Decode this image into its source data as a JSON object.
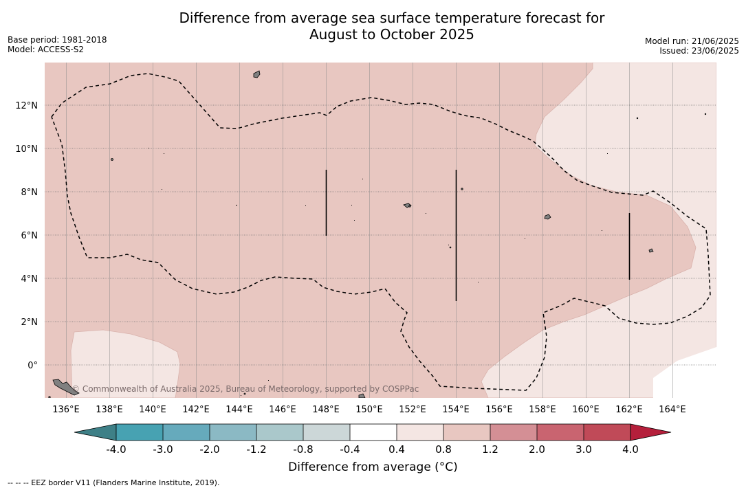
{
  "title": {
    "line1": "Difference from average sea surface temperature forecast for",
    "line2": "August to October 2025"
  },
  "meta_left": {
    "base_period": "Base period: 1981-2018",
    "model": "Model: ACCESS-S2"
  },
  "meta_right": {
    "model_run": "Model run: 21/06/2025",
    "issued": "Issued: 23/06/2025"
  },
  "map": {
    "lon_range": [
      135,
      166
    ],
    "lat_range": [
      -1.5,
      14
    ],
    "lon_ticks": [
      "136°E",
      "138°E",
      "140°E",
      "142°E",
      "144°E",
      "146°E",
      "148°E",
      "150°E",
      "152°E",
      "154°E",
      "156°E",
      "158°E",
      "160°E",
      "162°E",
      "164°E"
    ],
    "lon_tick_values": [
      136,
      138,
      140,
      142,
      144,
      146,
      148,
      150,
      152,
      154,
      156,
      158,
      160,
      162,
      164
    ],
    "lat_ticks": [
      "12°N",
      "10°N",
      "8°N",
      "6°N",
      "4°N",
      "2°N",
      "0°"
    ],
    "lat_tick_values": [
      12,
      10,
      8,
      6,
      4,
      2,
      0
    ],
    "credit": "© Commonwealth of Australia 2025, Bureau of Meteorology, supported by COSPPac",
    "colors": {
      "band_0.8_1.2": "#e8c7c1",
      "band_0.4_0.8": "#f4e6e3",
      "land": "#808080",
      "eez_line": "#000000",
      "grid": "#8a8a8a"
    }
  },
  "colorbar": {
    "title": "Difference from average (°C)",
    "tick_labels": [
      "-4.0",
      "-3.0",
      "-2.0",
      "-1.2",
      "-0.8",
      "-0.4",
      "0.4",
      "0.8",
      "1.2",
      "2.0",
      "3.0",
      "4.0"
    ],
    "colors": [
      "#3e8087",
      "#47a2b2",
      "#66aabc",
      "#8bb9c4",
      "#aac8cb",
      "#ccd7d8",
      "#ffffff",
      "#f4e6e3",
      "#e8c7c1",
      "#d48f95",
      "#c96470",
      "#c04a58"
    ],
    "extend_low_color": "#3e8087",
    "extend_high_color": "#b51f3b"
  },
  "footnote": "--  --  -- EEZ border V11 (Flanders Marine Institute, 2019)."
}
